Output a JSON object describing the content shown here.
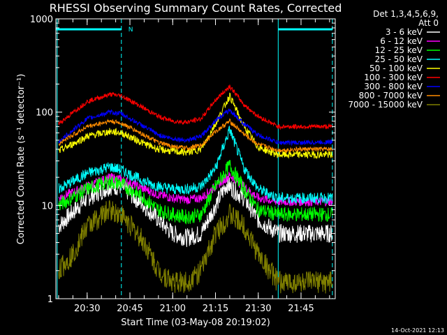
{
  "chart_data": {
    "type": "line",
    "title": "RHESSI Observing Summary Count Rates, Corrected",
    "xlabel": "Start Time (03-May-08 20:19:02)",
    "ylabel": "Corrected Count Rate (s⁻¹ detector⁻¹)",
    "y_scale": "log",
    "ylim": [
      1,
      1000
    ],
    "xlim": [
      "20:19:02",
      "21:57:00"
    ],
    "x_tick_labels": [
      "20:30",
      "20:45",
      "21:00",
      "21:15",
      "21:30",
      "21:45"
    ],
    "x_tick_values": [
      "20:30",
      "20:45",
      "21:00",
      "21:15",
      "21:30",
      "21:45"
    ],
    "y_tick_labels": [
      "1",
      "10",
      "100",
      "1000"
    ],
    "y_tick_values": [
      1,
      10,
      100,
      1000
    ],
    "legend_header": [
      "Det 1,3,4,5,6,9,",
      "Att 0"
    ],
    "legend_placement": "right",
    "annotations": {
      "night_markers": [
        {
          "start": "20:19:02",
          "end": "20:42:00"
        },
        {
          "start": "21:37:00",
          "end": "21:56:00"
        }
      ],
      "saa_label": "N",
      "vertical_dashed_times": [
        "20:42:00",
        "21:56:00"
      ],
      "vertical_solid_times": [
        "20:19:30",
        "21:37:00"
      ]
    },
    "series": [
      {
        "name": "3 - 6 keV",
        "color": "#ffffff",
        "x": [
          "20:20",
          "20:30",
          "20:38",
          "20:42",
          "20:50",
          "20:55",
          "21:00",
          "21:05",
          "21:10",
          "21:15",
          "21:19",
          "21:25",
          "21:30",
          "21:37",
          "21:45",
          "21:56"
        ],
        "y": [
          6,
          12,
          16,
          16,
          10,
          7,
          5,
          4.5,
          5,
          10,
          17,
          12,
          7,
          5,
          5,
          5
        ]
      },
      {
        "name": "6 - 12 keV",
        "color": "#ff00ff",
        "x": [
          "20:20",
          "20:30",
          "20:38",
          "20:42",
          "20:50",
          "20:55",
          "21:00",
          "21:05",
          "21:10",
          "21:15",
          "21:20",
          "21:25",
          "21:30",
          "21:37",
          "21:45",
          "21:56"
        ],
        "y": [
          12,
          16,
          20,
          19,
          15,
          13,
          12,
          11.5,
          12,
          16,
          21,
          16,
          12,
          11,
          11,
          11
        ]
      },
      {
        "name": "12 - 25 keV",
        "color": "#00ff00",
        "x": [
          "20:20",
          "20:30",
          "20:38",
          "20:42",
          "20:50",
          "20:55",
          "21:00",
          "21:05",
          "21:10",
          "21:15",
          "21:20",
          "21:25",
          "21:30",
          "21:37",
          "21:45",
          "21:56"
        ],
        "y": [
          10,
          15,
          18,
          17,
          12,
          9,
          8,
          7.5,
          8,
          16,
          27,
          15,
          9,
          8,
          8,
          8
        ]
      },
      {
        "name": "25 - 50 keV",
        "color": "#00ffff",
        "x": [
          "20:20",
          "20:30",
          "20:38",
          "20:42",
          "20:50",
          "20:55",
          "21:00",
          "21:05",
          "21:10",
          "21:15",
          "21:20",
          "21:25",
          "21:30",
          "21:37",
          "21:45",
          "21:56"
        ],
        "y": [
          15,
          22,
          26,
          24,
          18,
          16,
          15,
          15,
          16,
          25,
          65,
          25,
          15,
          12,
          12,
          12
        ]
      },
      {
        "name": "50 - 100 keV",
        "color": "#ffff00",
        "x": [
          "20:20",
          "20:30",
          "20:38",
          "20:42",
          "20:50",
          "20:55",
          "21:00",
          "21:05",
          "21:10",
          "21:15",
          "21:20",
          "21:25",
          "21:30",
          "21:37",
          "21:45",
          "21:56"
        ],
        "y": [
          38,
          55,
          62,
          60,
          46,
          40,
          38,
          37,
          40,
          75,
          150,
          70,
          42,
          35,
          35,
          35
        ]
      },
      {
        "name": "100 - 300 keV",
        "color": "#ff0000",
        "x": [
          "20:20",
          "20:30",
          "20:38",
          "20:42",
          "20:50",
          "20:55",
          "21:00",
          "21:05",
          "21:10",
          "21:15",
          "21:20",
          "21:25",
          "21:30",
          "21:37",
          "21:45",
          "21:56"
        ],
        "y": [
          75,
          130,
          155,
          150,
          110,
          90,
          80,
          78,
          85,
          135,
          190,
          120,
          90,
          70,
          70,
          70
        ]
      },
      {
        "name": "300 - 800 keV",
        "color": "#0000ff",
        "x": [
          "20:20",
          "20:30",
          "20:38",
          "20:42",
          "20:50",
          "20:55",
          "21:00",
          "21:05",
          "21:10",
          "21:15",
          "21:20",
          "21:25",
          "21:30",
          "21:37",
          "21:45",
          "21:56"
        ],
        "y": [
          48,
          85,
          100,
          96,
          70,
          57,
          52,
          50,
          55,
          82,
          105,
          75,
          57,
          47,
          47,
          48
        ]
      },
      {
        "name": "800 - 7000 keV",
        "color": "#ff8c00",
        "x": [
          "20:20",
          "20:30",
          "20:38",
          "20:42",
          "20:50",
          "20:55",
          "21:00",
          "21:05",
          "21:10",
          "21:15",
          "21:20",
          "21:25",
          "21:30",
          "21:37",
          "21:45",
          "21:56"
        ],
        "y": [
          46,
          70,
          80,
          76,
          57,
          47,
          43,
          41,
          44,
          62,
          80,
          58,
          45,
          39,
          40,
          40
        ]
      },
      {
        "name": "7000 - 15000 keV",
        "color": "#808000",
        "x": [
          "20:20",
          "20:25",
          "20:30",
          "20:38",
          "20:42",
          "20:50",
          "20:55",
          "21:00",
          "21:05",
          "21:10",
          "21:15",
          "21:20",
          "21:25",
          "21:30",
          "21:37",
          "21:45",
          "21:56"
        ],
        "y": [
          2,
          3,
          6,
          9,
          8,
          4,
          2,
          1.5,
          1.5,
          2,
          5,
          8,
          6,
          3,
          1.5,
          1.5,
          1.5
        ]
      }
    ]
  },
  "footer": {
    "timestamp": "14-Oct-2021 12:13"
  }
}
